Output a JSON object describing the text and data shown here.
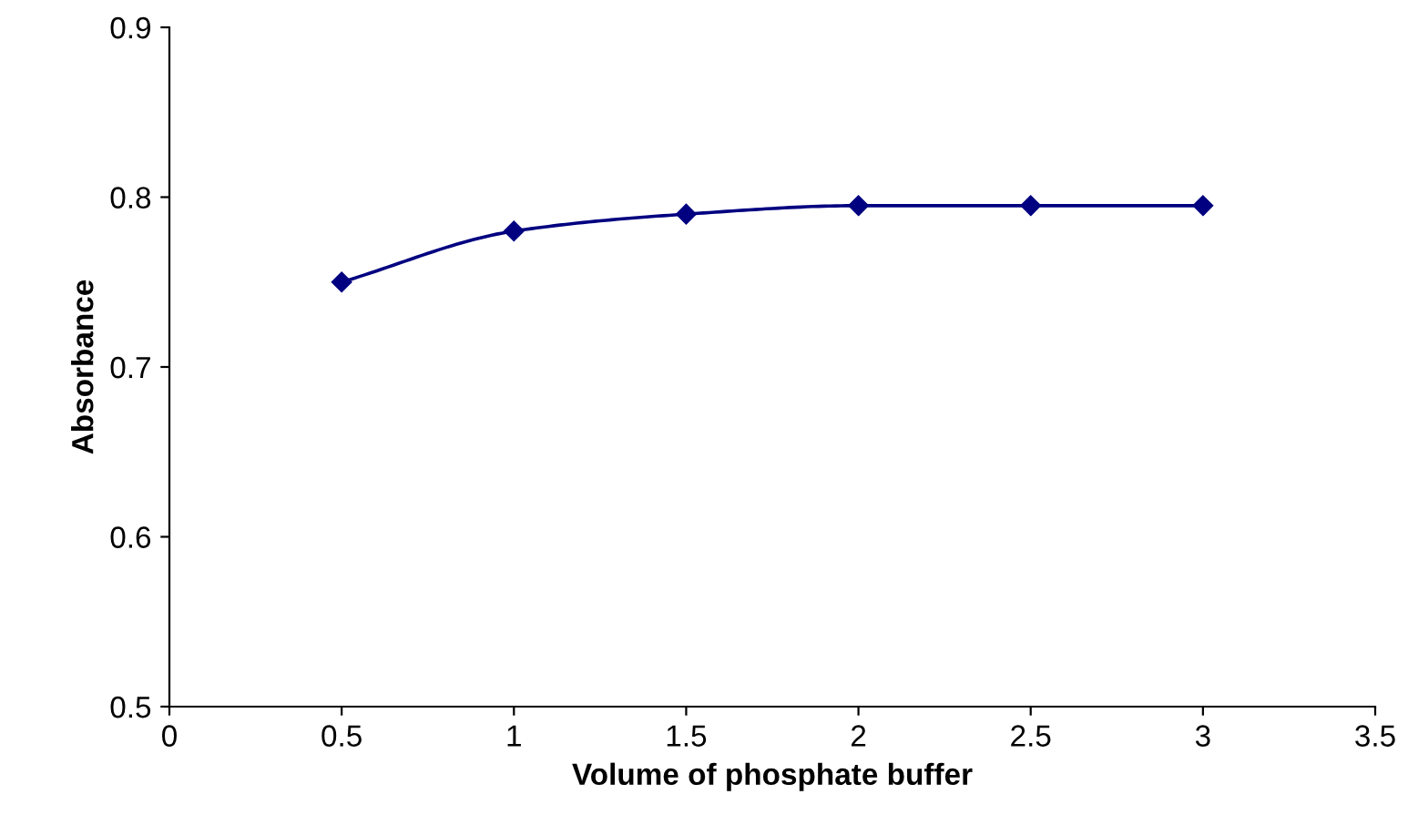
{
  "chart_data": {
    "type": "line",
    "xlabel": "Volume of phosphate buffer",
    "ylabel": "Absorbance",
    "x": [
      0.5,
      1,
      1.5,
      2,
      2.5,
      3
    ],
    "series": [
      {
        "color": "#000080",
        "values": [
          0.75,
          0.78,
          0.79,
          0.795,
          0.795,
          0.795
        ]
      }
    ],
    "xlim": [
      0,
      3.5
    ],
    "xticks": [
      0,
      0.5,
      1,
      1.5,
      2,
      2.5,
      3,
      3.5
    ],
    "ylim": [
      0.5,
      0.9
    ],
    "yticks": [
      0.5,
      0.6,
      0.7,
      0.8,
      0.9
    ],
    "marker": "diamond",
    "line_style": "solid",
    "grid": false,
    "legend": false
  }
}
